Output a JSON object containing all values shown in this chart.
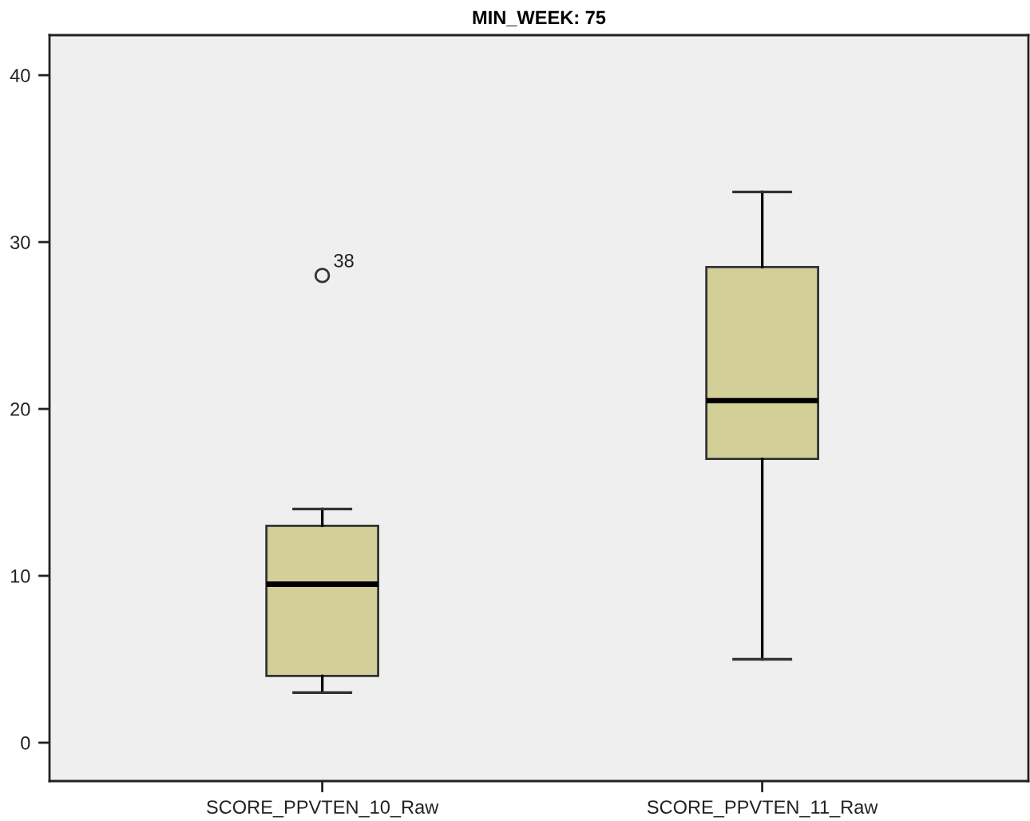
{
  "chart_data": {
    "type": "box",
    "title": "MIN_WEEK: 75",
    "categories": [
      "SCORE_PPVTEN_10_Raw",
      "SCORE_PPVTEN_11_Raw"
    ],
    "boxes": [
      {
        "low": 3,
        "q1": 4,
        "median": 9.5,
        "q3": 13,
        "high": 14,
        "outliers": [
          28
        ]
      },
      {
        "low": 5,
        "q1": 17,
        "median": 20.5,
        "q3": 28.5,
        "high": 33
      }
    ],
    "color": "#d3cf98",
    "ylim": [
      -2.3,
      42.4
    ],
    "yticks": [
      0,
      10,
      20,
      30,
      40
    ],
    "annotations": [
      "38"
    ]
  }
}
